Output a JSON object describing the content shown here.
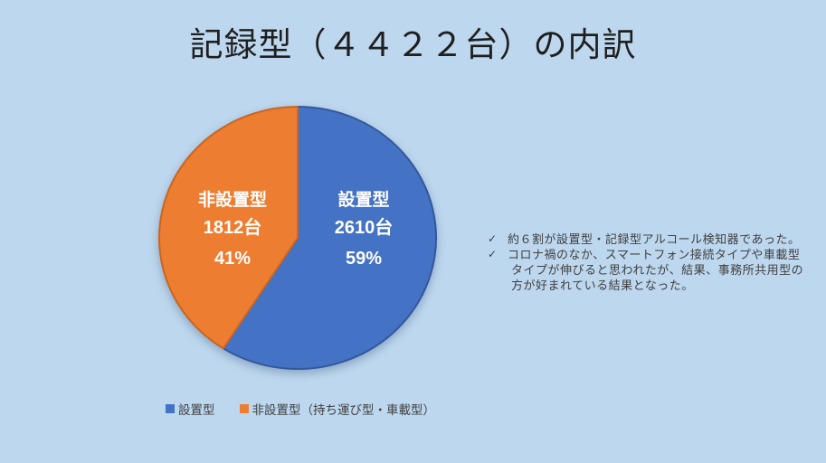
{
  "slide": {
    "title": "記録型（４４２２台）の内訳",
    "background_color": "#BDD7EE"
  },
  "chart_data": {
    "type": "pie",
    "title": "記録型（４４２２台）の内訳",
    "total_units": 4422,
    "start_angle_deg": 0,
    "direction": "clockwise",
    "slices": [
      {
        "label": "設置型",
        "value": 2610,
        "units_label": "2610台",
        "percent": 59,
        "percent_label": "59%",
        "color": "#4472C4",
        "border_color": "#33589D"
      },
      {
        "label": "非設置型",
        "value": 1812,
        "units_label": "1812台",
        "percent": 41,
        "percent_label": "41%",
        "color": "#ED7D31",
        "border_color": "#C9661F"
      }
    ],
    "legend": {
      "position": "bottom",
      "items": [
        {
          "label": "設置型",
          "color": "#4472C4"
        },
        {
          "label": "非設置型（持ち運び型・車載型）",
          "color": "#ED7D31"
        }
      ]
    }
  },
  "notes": {
    "bullet_char": "✓",
    "text_color": "#404040",
    "bullets": [
      {
        "lines": [
          "約６割が設置型・記録型アルコール検知器であった。"
        ]
      },
      {
        "lines": [
          "コロナ禍のなか、スマートフォン接続タイプや車載型",
          "タイプが伸びると思われたが、結果、事務所共用型の",
          "方が好まれている結果となった。"
        ]
      }
    ]
  }
}
